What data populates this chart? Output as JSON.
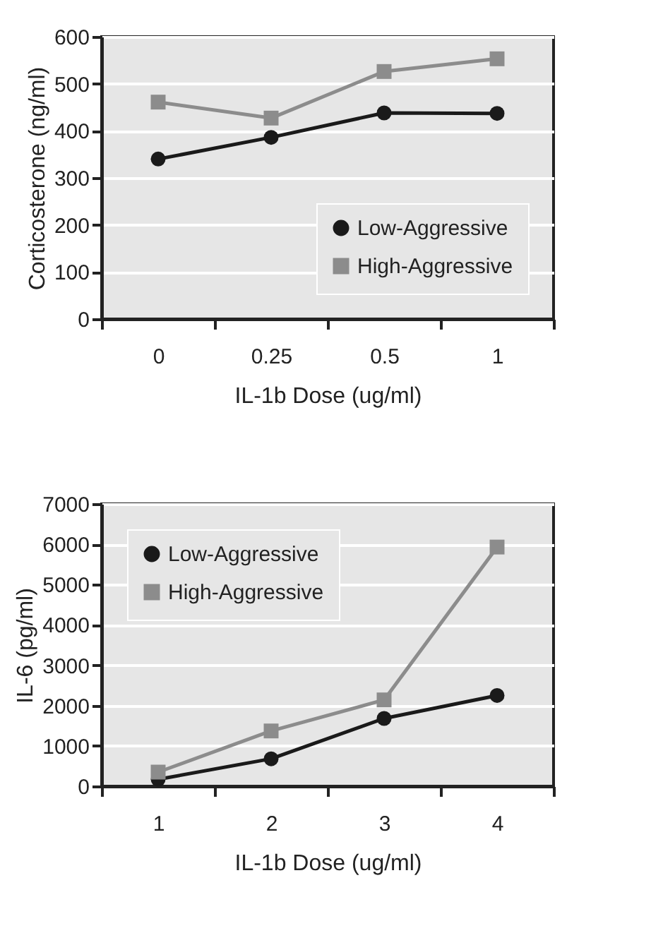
{
  "chart_data": [
    {
      "type": "line",
      "xlabel": "IL-1b Dose (ug/ml)",
      "ylabel": "Corticosterone (ng/ml)",
      "categories": [
        "0",
        "0.25",
        "0.5",
        "1"
      ],
      "ylim": [
        0,
        600
      ],
      "yticks": [
        0,
        100,
        200,
        300,
        400,
        500,
        600
      ],
      "grid": "y",
      "legend": "bottom right",
      "series": [
        {
          "name": "Low-Aggressive",
          "color": "#1a1a1a",
          "marker": "circle",
          "values": [
            340,
            386,
            438,
            437
          ]
        },
        {
          "name": "High-Aggressive",
          "color": "#8c8c8c",
          "marker": "square",
          "values": [
            461,
            427,
            526,
            553
          ]
        }
      ]
    },
    {
      "type": "line",
      "xlabel": "IL-1b Dose (ug/ml)",
      "ylabel": "IL-6 (pg/ml)",
      "categories": [
        "1",
        "2",
        "3",
        "4"
      ],
      "ylim": [
        0,
        7000
      ],
      "yticks": [
        0,
        1000,
        2000,
        3000,
        4000,
        5000,
        6000,
        7000
      ],
      "grid": "y",
      "legend": "top left",
      "series": [
        {
          "name": "Low-Aggressive",
          "color": "#1a1a1a",
          "marker": "circle",
          "values": [
            170,
            680,
            1680,
            2250
          ]
        },
        {
          "name": "High-Aggressive",
          "color": "#8c8c8c",
          "marker": "square",
          "values": [
            350,
            1370,
            2140,
            5930
          ]
        }
      ]
    }
  ]
}
